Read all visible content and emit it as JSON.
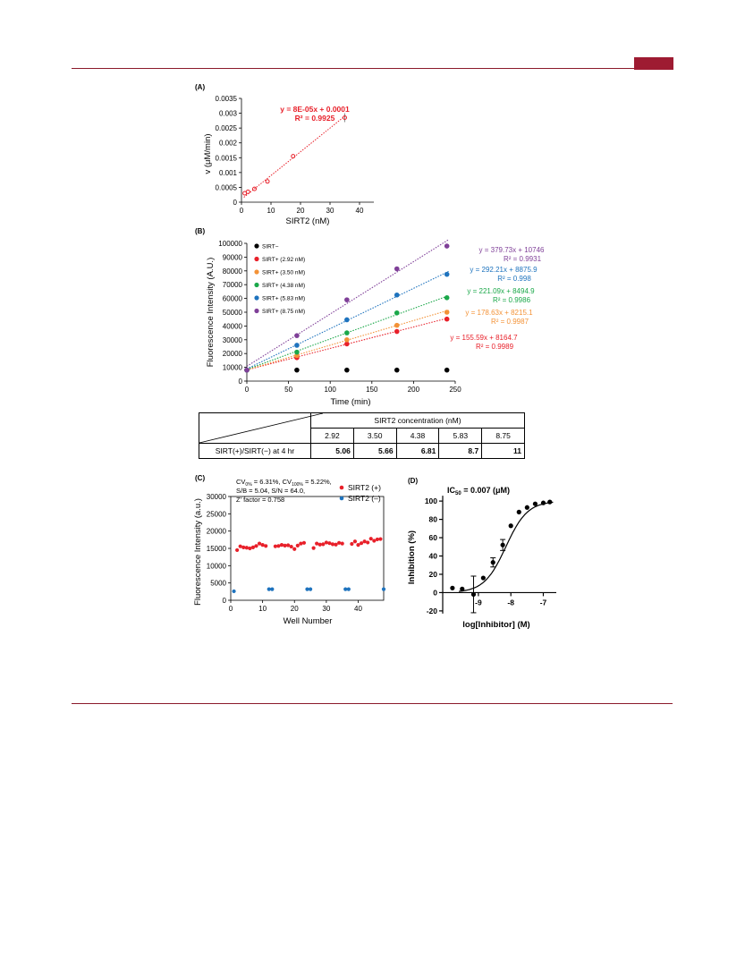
{
  "panelA": {
    "label": "(A)",
    "equation": "y = 8E-05x + 0.0001",
    "r2": "R² = 0.9925",
    "color": "#e8202a",
    "chart_data": {
      "type": "scatter",
      "xlabel": "SIRT2 (nM)",
      "ylabel": "v (μM/min)",
      "xlim": [
        0,
        40
      ],
      "ylim": [
        0,
        0.0035
      ],
      "xticks": [
        "0",
        "10",
        "20",
        "30",
        "40"
      ],
      "yticks": [
        "0",
        "0.0005",
        "0.001",
        "0.0015",
        "0.002",
        "0.0025",
        "0.003",
        "0.0035"
      ],
      "x": [
        1.1,
        2.2,
        4.4,
        8.8,
        17.5,
        35
      ],
      "y": [
        0.0003,
        0.00035,
        0.00045,
        0.0007,
        0.00155,
        0.00285
      ],
      "err": [
        0,
        0,
        0,
        0,
        0,
        0.00015
      ],
      "trend": {
        "slope": 8e-05,
        "intercept": 0.0001
      }
    }
  },
  "panelB": {
    "label": "(B)",
    "chart_data": {
      "type": "scatter",
      "xlabel": "Time (min)",
      "ylabel": "Fluorescence Intensity (A.U.)",
      "xlim": [
        0,
        250
      ],
      "ylim": [
        0,
        100000
      ],
      "xticks": [
        "0",
        "50",
        "100",
        "150",
        "200",
        "250"
      ],
      "yticks": [
        "0",
        "10000",
        "20000",
        "30000",
        "40000",
        "50000",
        "60000",
        "70000",
        "80000",
        "90000",
        "100000"
      ],
      "x": [
        0,
        60,
        120,
        180,
        240
      ],
      "series": [
        {
          "name": "SIRT−",
          "color": "#000000",
          "values": [
            8000,
            8000,
            8000,
            8000,
            8000
          ],
          "equation": "",
          "r2": ""
        },
        {
          "name": "SIRT+ (2.92 nM)",
          "color": "#e8202a",
          "values": [
            8000,
            17000,
            27000,
            36000,
            45000
          ],
          "equation": "y = 155.59x + 8164.7",
          "r2": "R² = 0.9989",
          "slope": 155.59,
          "intercept": 8164.7
        },
        {
          "name": "SIRT+ (3.50 nM)",
          "color": "#f39237",
          "values": [
            8000,
            18500,
            30000,
            40500,
            50000
          ],
          "equation": "y = 178.63x + 8215.1",
          "r2": "R² = 0.9987",
          "slope": 178.63,
          "intercept": 8215.1
        },
        {
          "name": "SIRT+ (4.38 nM)",
          "color": "#1ba84a",
          "values": [
            8000,
            21000,
            35000,
            49500,
            60500
          ],
          "equation": "y = 221.09x + 8494.9",
          "r2": "R² = 0.9986",
          "slope": 221.09,
          "intercept": 8494.9
        },
        {
          "name": "SIRT+ (5.83 nM)",
          "color": "#1e73be",
          "values": [
            8000,
            26000,
            44500,
            62500,
            77500
          ],
          "equation": "y = 292.21x + 8875.9",
          "r2": "R² = 0.998",
          "slope": 292.21,
          "intercept": 8875.9
        },
        {
          "name": "SIRT+ (8.75 nM)",
          "color": "#7f3f98",
          "values": [
            8000,
            33000,
            59000,
            81500,
            98000
          ],
          "equation": "y = 379.73x + 10746",
          "r2": "R² = 0.9931",
          "slope": 379.73,
          "intercept": 10746
        }
      ]
    }
  },
  "table": {
    "header": "SIRT2 concentration (nM)",
    "concentrations": [
      "2.92",
      "3.50",
      "4.38",
      "5.83",
      "8.75"
    ],
    "row_label": "SIRT(+)/SIRT(−) at 4 hr",
    "values": [
      "5.06",
      "5.66",
      "6.81",
      "8.7",
      "11"
    ]
  },
  "panelC": {
    "label": "(C)",
    "stats": {
      "cv0_prefix": "CV",
      "cv0_sub": "0%",
      "cv0_val": " = 6.31%, ",
      "cv100_prefix": "CV",
      "cv100_sub": "100%",
      "cv100_val": " = 5.22%,",
      "line2": "S/B = 5.04, S/N = 64.0,",
      "line3": "Z' factor = 0.758"
    },
    "chart_data": {
      "type": "scatter",
      "xlabel": "Well Number",
      "ylabel": "Fluorescence Intensity (a.u.)",
      "xlim": [
        0,
        48
      ],
      "ylim": [
        0,
        30000
      ],
      "xticks": [
        "0",
        "10",
        "20",
        "30",
        "40"
      ],
      "yticks": [
        "0",
        "5000",
        "10000",
        "15000",
        "20000",
        "25000",
        "30000"
      ],
      "series": [
        {
          "name": "SIRT2 (+)",
          "color": "#e8202a",
          "x": [
            2,
            3,
            4,
            5,
            6,
            7,
            8,
            9,
            10,
            11,
            14,
            15,
            16,
            17,
            18,
            19,
            20,
            21,
            22,
            23,
            26,
            27,
            28,
            29,
            30,
            31,
            32,
            33,
            34,
            35,
            38,
            39,
            40,
            41,
            42,
            43,
            44,
            45,
            46,
            47
          ],
          "values": [
            14500,
            15600,
            15300,
            15200,
            15000,
            15300,
            15700,
            16400,
            16000,
            15700,
            15600,
            15700,
            16000,
            15800,
            15900,
            15500,
            14800,
            15800,
            16400,
            16600,
            15100,
            16400,
            16100,
            16200,
            16700,
            16500,
            16200,
            16100,
            16600,
            16400,
            16300,
            17000,
            16000,
            16500,
            17000,
            16700,
            17800,
            17200,
            17600,
            17700
          ]
        },
        {
          "name": "SIRT2 (–)",
          "color": "#1e73be",
          "x": [
            1,
            12,
            13,
            24,
            25,
            36,
            37,
            48
          ],
          "values": [
            2600,
            3200,
            3200,
            3200,
            3200,
            3200,
            3200,
            3200
          ]
        }
      ]
    }
  },
  "panelD": {
    "label": "(D)",
    "title_prefix": "IC",
    "title_sub": "50",
    "title_suffix": " = 0.007 (μM)",
    "chart_data": {
      "type": "line",
      "xlabel": "log[Inhibitor] (M)",
      "ylabel": "Inhibition (%)",
      "xlim": [
        -10.1,
        -6.6
      ],
      "ylim": [
        -25,
        105
      ],
      "xticks": [
        "-9",
        "-8",
        "-7"
      ],
      "yticks": [
        "-20",
        "0",
        "20",
        "40",
        "60",
        "80",
        "100"
      ],
      "x": [
        -9.8,
        -9.5,
        -9.15,
        -8.85,
        -8.55,
        -8.25,
        -8.0,
        -7.75,
        -7.5,
        -7.25,
        -7.0,
        -6.8
      ],
      "y": [
        5,
        4,
        -2,
        16,
        33,
        52,
        73,
        88,
        93,
        97,
        98,
        99
      ],
      "err": [
        0,
        0,
        20,
        0,
        5,
        6,
        0,
        0,
        0,
        0,
        0,
        0
      ],
      "fit": {
        "logIC50": -8.155,
        "bottom": 0,
        "top": 100,
        "hill": 1.3
      }
    }
  }
}
